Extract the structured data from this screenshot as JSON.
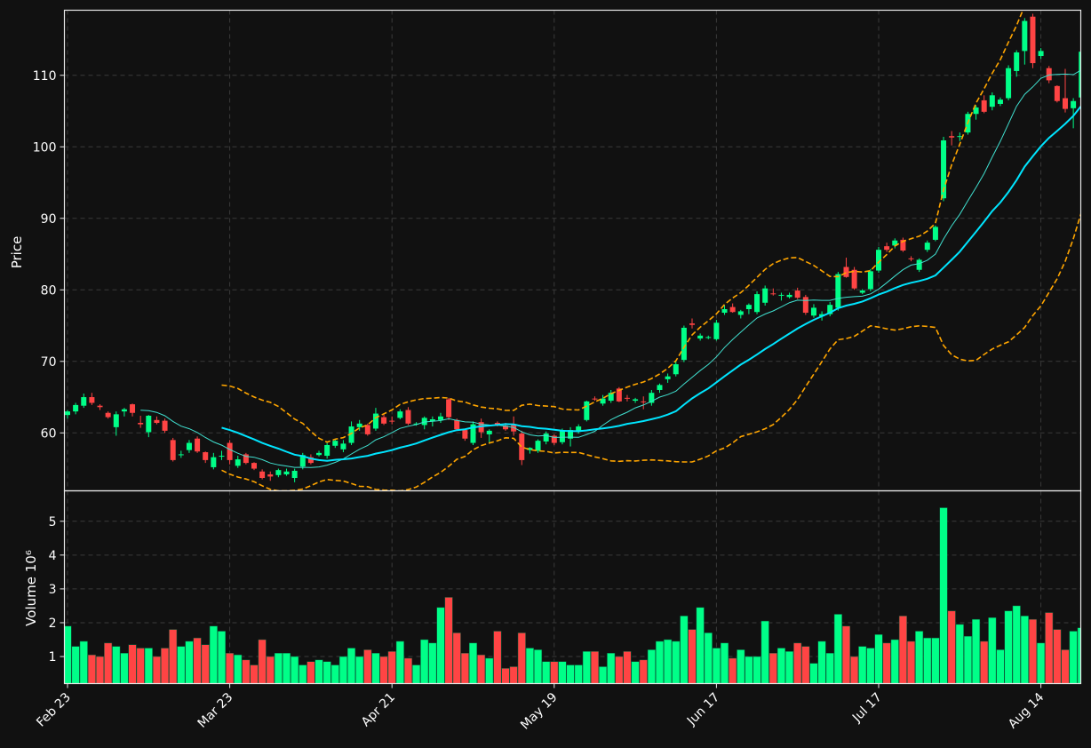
{
  "chart_data": {
    "type": "candlestick",
    "price_panel": {
      "ylabel": "Price",
      "ylim": [
        51.9,
        119.1
      ],
      "yticks": [
        60,
        70,
        80,
        90,
        100,
        110
      ],
      "grid": true
    },
    "volume_panel": {
      "ylabel": "Volume  10⁶",
      "ylim": [
        0.2,
        5.9
      ],
      "yticks": [
        1,
        2,
        3,
        4,
        5
      ],
      "grid": true
    },
    "x_tick_labels": [
      {
        "label": "Feb 23",
        "index": 0
      },
      {
        "label": "Mar 23",
        "index": 20
      },
      {
        "label": "Apr 21",
        "index": 40
      },
      {
        "label": "May 19",
        "index": 60
      },
      {
        "label": "Jun 17",
        "index": 80
      },
      {
        "label": "Jul 17",
        "index": 100
      },
      {
        "label": "Aug 14",
        "index": 120
      }
    ],
    "colors": {
      "up": "#00ff88",
      "down": "#ff4444",
      "ma_fast": "#40e0d0",
      "ma_slow": "#00e5ff",
      "bands": "#ffa500",
      "background": "#111111",
      "grid": "#3a3a3a"
    },
    "series": [
      {
        "name": "ma_fast",
        "start_index": 9,
        "window": 10
      },
      {
        "name": "ma_slow",
        "start_index": 19,
        "window": 20
      },
      {
        "name": "bollinger_upper",
        "start_index": 19,
        "window": 20,
        "k": 2
      },
      {
        "name": "bollinger_lower",
        "start_index": 19,
        "window": 20,
        "k": 2
      }
    ],
    "ohlcv": [
      [
        62.5,
        63.2,
        62.0,
        63.0,
        1.9
      ],
      [
        63.0,
        64.2,
        62.6,
        63.9,
        1.3
      ],
      [
        63.8,
        65.5,
        63.5,
        65.0,
        1.45
      ],
      [
        65.0,
        65.6,
        63.9,
        64.2,
        1.05
      ],
      [
        63.8,
        64.0,
        63.2,
        63.6,
        1.0
      ],
      [
        62.8,
        63.0,
        62.0,
        62.2,
        1.4
      ],
      [
        60.8,
        63.0,
        59.6,
        62.6,
        1.3
      ],
      [
        63.0,
        63.5,
        62.3,
        63.3,
        1.1
      ],
      [
        64.0,
        64.1,
        62.3,
        62.8,
        1.35
      ],
      [
        61.4,
        62.4,
        60.7,
        61.2,
        1.25
      ],
      [
        60.1,
        62.5,
        59.4,
        62.4,
        1.25
      ],
      [
        61.8,
        62.3,
        61.2,
        61.4,
        1.0
      ],
      [
        61.7,
        62.0,
        60.0,
        60.3,
        1.25
      ],
      [
        59.0,
        59.3,
        56.0,
        56.2,
        1.8
      ],
      [
        56.9,
        57.5,
        56.5,
        57.0,
        1.3
      ],
      [
        57.6,
        59.0,
        57.2,
        58.6,
        1.45
      ],
      [
        59.2,
        59.5,
        57.2,
        57.4,
        1.55
      ],
      [
        57.3,
        57.4,
        55.8,
        56.2,
        1.35
      ],
      [
        55.2,
        57.2,
        54.9,
        56.6,
        1.9
      ],
      [
        56.8,
        57.5,
        56.2,
        56.8,
        1.75
      ],
      [
        58.6,
        59.0,
        55.6,
        56.2,
        1.1
      ],
      [
        55.4,
        56.8,
        55.1,
        56.3,
        1.05
      ],
      [
        57.0,
        57.2,
        55.6,
        55.8,
        0.9
      ],
      [
        55.8,
        55.9,
        54.8,
        55.0,
        0.75
      ],
      [
        54.6,
        54.9,
        53.5,
        53.7,
        1.5
      ],
      [
        54.2,
        54.6,
        53.3,
        53.9,
        1.0
      ],
      [
        54.1,
        55.0,
        53.8,
        54.8,
        1.1
      ],
      [
        54.2,
        55.0,
        54.0,
        54.6,
        1.1
      ],
      [
        53.7,
        55.0,
        53.1,
        54.7,
        1.0
      ],
      [
        55.3,
        57.2,
        54.9,
        56.9,
        0.75
      ],
      [
        56.6,
        57.0,
        55.6,
        55.8,
        0.85
      ],
      [
        56.9,
        57.5,
        56.7,
        57.2,
        0.9
      ],
      [
        56.8,
        58.6,
        56.4,
        58.3,
        0.85
      ],
      [
        58.2,
        59.2,
        57.9,
        58.9,
        0.75
      ],
      [
        57.7,
        59.0,
        57.3,
        58.5,
        1.0
      ],
      [
        58.6,
        61.6,
        58.3,
        60.9,
        1.25
      ],
      [
        60.8,
        61.8,
        60.3,
        61.3,
        1.0
      ],
      [
        61.1,
        61.3,
        59.6,
        59.8,
        1.2
      ],
      [
        60.6,
        63.5,
        60.3,
        62.7,
        1.1
      ],
      [
        62.2,
        62.7,
        61.1,
        61.3,
        1.0
      ],
      [
        61.7,
        62.3,
        61.2,
        61.6,
        1.15
      ],
      [
        62.1,
        63.3,
        61.9,
        63.0,
        1.45
      ],
      [
        63.2,
        63.6,
        61.1,
        61.3,
        0.95
      ],
      [
        61.2,
        61.5,
        61.0,
        61.3,
        0.75
      ],
      [
        61.1,
        62.3,
        60.5,
        62.1,
        1.5
      ],
      [
        61.6,
        62.3,
        60.9,
        61.9,
        1.4
      ],
      [
        61.8,
        62.8,
        61.4,
        62.3,
        2.45
      ],
      [
        64.7,
        64.9,
        61.8,
        62.2,
        2.75
      ],
      [
        61.8,
        62.0,
        60.3,
        60.5,
        1.7
      ],
      [
        60.4,
        60.6,
        58.9,
        59.2,
        1.1
      ],
      [
        58.6,
        61.6,
        58.3,
        61.2,
        1.4
      ],
      [
        61.5,
        62.0,
        59.3,
        60.1,
        1.05
      ],
      [
        59.8,
        60.5,
        58.6,
        60.3,
        0.95
      ],
      [
        61.4,
        61.6,
        60.9,
        61.1,
        1.75
      ],
      [
        61.0,
        61.4,
        60.3,
        60.5,
        0.65
      ],
      [
        61.2,
        62.3,
        59.6,
        60.2,
        0.7
      ],
      [
        59.9,
        60.3,
        55.5,
        56.2,
        1.7
      ],
      [
        57.6,
        58.0,
        57.1,
        57.9,
        1.25
      ],
      [
        57.5,
        59.1,
        57.2,
        58.9,
        1.2
      ],
      [
        58.8,
        60.2,
        58.4,
        59.9,
        0.85
      ],
      [
        59.6,
        59.8,
        58.3,
        58.6,
        0.85
      ],
      [
        58.7,
        60.6,
        58.4,
        60.3,
        0.85
      ],
      [
        59.2,
        60.8,
        58.1,
        60.4,
        0.75
      ],
      [
        60.3,
        61.2,
        59.9,
        60.9,
        0.75
      ],
      [
        61.8,
        64.5,
        61.6,
        64.4,
        1.15
      ],
      [
        64.8,
        65.1,
        64.5,
        64.7,
        1.15
      ],
      [
        64.1,
        65.3,
        63.8,
        64.8,
        0.7
      ],
      [
        64.5,
        66.0,
        64.2,
        65.6,
        1.1
      ],
      [
        66.2,
        66.4,
        64.3,
        64.4,
        1.0
      ],
      [
        64.9,
        65.3,
        64.4,
        64.8,
        1.15
      ],
      [
        64.5,
        64.9,
        64.2,
        64.7,
        0.85
      ],
      [
        64.4,
        65.1,
        63.3,
        64.3,
        0.9
      ],
      [
        64.2,
        66.0,
        63.8,
        65.6,
        1.2
      ],
      [
        66.0,
        66.9,
        65.6,
        66.7,
        1.45
      ],
      [
        67.5,
        68.3,
        67.0,
        67.9,
        1.5
      ],
      [
        68.2,
        70.0,
        67.9,
        69.6,
        1.45
      ],
      [
        70.2,
        75.0,
        69.9,
        74.7,
        2.2
      ],
      [
        75.3,
        76.0,
        74.6,
        75.1,
        1.8
      ],
      [
        73.2,
        73.9,
        72.9,
        73.6,
        2.45
      ],
      [
        73.3,
        73.6,
        73.1,
        73.4,
        1.7
      ],
      [
        73.1,
        75.8,
        72.9,
        75.4,
        1.25
      ],
      [
        76.8,
        77.8,
        76.5,
        77.3,
        1.4
      ],
      [
        77.6,
        78.1,
        76.8,
        76.9,
        0.95
      ],
      [
        76.5,
        77.2,
        76.0,
        77.0,
        1.2
      ],
      [
        77.3,
        78.1,
        76.6,
        77.9,
        1.0
      ],
      [
        76.9,
        79.8,
        76.6,
        79.4,
        1.0
      ],
      [
        78.2,
        80.6,
        77.8,
        80.2,
        2.05
      ],
      [
        79.5,
        80.2,
        79.2,
        79.4,
        1.1
      ],
      [
        79.3,
        79.6,
        78.5,
        79.3,
        1.25
      ],
      [
        79.0,
        79.6,
        78.8,
        79.3,
        1.15
      ],
      [
        79.9,
        80.3,
        78.7,
        78.9,
        1.4
      ],
      [
        79.0,
        79.3,
        76.5,
        76.8,
        1.3
      ],
      [
        76.4,
        78.0,
        76.1,
        77.5,
        0.8
      ],
      [
        76.3,
        77.0,
        75.7,
        76.6,
        1.45
      ],
      [
        76.6,
        78.3,
        76.3,
        77.9,
        1.1
      ],
      [
        77.5,
        82.5,
        77.1,
        82.2,
        2.25
      ],
      [
        83.2,
        84.5,
        81.7,
        81.8,
        1.9
      ],
      [
        82.8,
        83.2,
        80.0,
        80.2,
        1.0
      ],
      [
        79.6,
        80.1,
        79.4,
        79.9,
        1.3
      ],
      [
        80.1,
        82.9,
        79.8,
        82.6,
        1.25
      ],
      [
        82.7,
        86.0,
        82.4,
        85.6,
        1.65
      ],
      [
        86.1,
        86.6,
        85.3,
        85.6,
        1.4
      ],
      [
        86.2,
        87.2,
        85.8,
        86.9,
        1.5
      ],
      [
        87.0,
        87.3,
        85.3,
        85.5,
        2.2
      ],
      [
        84.4,
        84.7,
        84.0,
        84.3,
        1.45
      ],
      [
        82.8,
        84.4,
        82.5,
        84.2,
        1.75
      ],
      [
        85.6,
        86.9,
        85.3,
        86.6,
        1.55
      ],
      [
        87.0,
        89.0,
        86.8,
        88.8,
        1.55
      ],
      [
        92.8,
        101.4,
        92.4,
        100.9,
        5.4
      ],
      [
        101.5,
        102.2,
        100.2,
        101.3,
        2.35
      ],
      [
        101.4,
        102.0,
        100.8,
        101.5,
        1.95
      ],
      [
        102.0,
        104.9,
        101.7,
        104.6,
        1.6
      ],
      [
        104.6,
        105.8,
        103.8,
        105.5,
        2.1
      ],
      [
        106.5,
        107.2,
        104.7,
        104.9,
        1.45
      ],
      [
        105.6,
        107.6,
        105.1,
        107.2,
        2.15
      ],
      [
        106.0,
        106.9,
        105.7,
        106.6,
        1.2
      ],
      [
        106.8,
        111.4,
        106.5,
        111.0,
        2.35
      ],
      [
        110.6,
        113.5,
        109.8,
        113.2,
        2.5
      ],
      [
        113.4,
        118.0,
        111.5,
        117.6,
        2.2
      ],
      [
        118.2,
        118.6,
        111.0,
        111.7,
        2.1
      ],
      [
        112.7,
        113.8,
        112.3,
        113.4,
        1.4
      ],
      [
        111.0,
        111.3,
        108.9,
        109.3,
        2.3
      ],
      [
        108.5,
        108.6,
        106.2,
        106.4,
        1.8
      ],
      [
        106.8,
        110.9,
        104.8,
        105.3,
        1.2
      ],
      [
        105.4,
        106.8,
        102.6,
        106.4,
        1.75
      ],
      [
        106.9,
        113.6,
        106.6,
        113.3,
        1.85
      ]
    ]
  }
}
